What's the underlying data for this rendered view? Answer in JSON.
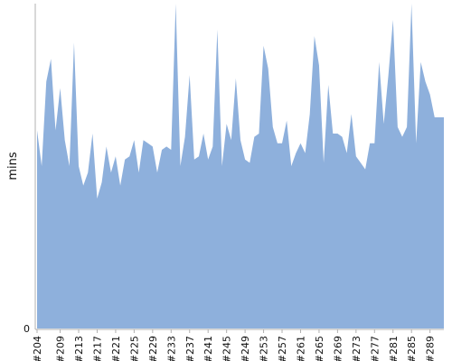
{
  "chart_data": {
    "type": "area",
    "title": "",
    "xlabel": "",
    "ylabel": "mins",
    "ylim": [
      0,
      10
    ],
    "y_ticks": [
      0
    ],
    "x_tick_labels": [
      "#204",
      "#209",
      "#213",
      "#217",
      "#221",
      "#225",
      "#229",
      "#233",
      "#237",
      "#241",
      "#245",
      "#249",
      "#253",
      "#257",
      "#261",
      "#265",
      "#269",
      "#273",
      "#277",
      "#281",
      "#285",
      "#289"
    ],
    "x_tick_builds": [
      204,
      209,
      213,
      217,
      221,
      225,
      229,
      233,
      237,
      241,
      245,
      249,
      253,
      257,
      261,
      265,
      269,
      273,
      277,
      281,
      285,
      289
    ],
    "grid": false,
    "legend": "none",
    "fill_color": "#8eb0dc",
    "axis_color": "#b0b0b0",
    "series": [
      {
        "x": [
          204,
          205,
          206,
          207,
          208,
          209,
          210,
          211,
          212,
          213,
          214,
          215,
          216,
          217,
          218,
          219,
          220,
          221,
          222,
          223,
          224,
          225,
          226,
          227,
          228,
          229,
          230,
          231,
          232,
          233,
          234,
          235,
          236,
          237,
          238,
          239,
          240,
          241,
          242,
          243,
          244,
          245,
          246,
          247,
          248,
          249,
          250,
          251,
          252,
          253,
          254,
          255,
          256,
          257,
          258,
          259,
          260,
          261,
          262,
          263,
          264,
          265,
          266,
          267,
          268,
          269,
          270,
          271,
          272,
          273,
          274,
          275,
          276,
          277,
          278,
          279,
          280,
          281,
          282,
          283,
          284,
          285,
          286,
          287,
          288,
          289,
          290,
          291,
          292
        ],
        "values": [
          6.1,
          5.0,
          7.6,
          8.3,
          6.1,
          7.4,
          5.8,
          5.0,
          8.8,
          5.0,
          4.4,
          4.8,
          6.0,
          4.0,
          4.5,
          5.6,
          4.8,
          5.3,
          4.4,
          5.2,
          5.3,
          5.8,
          4.8,
          5.8,
          5.7,
          5.6,
          4.8,
          5.5,
          5.6,
          5.5,
          10.0,
          5.0,
          5.9,
          7.8,
          5.2,
          5.3,
          6.0,
          5.2,
          5.6,
          9.2,
          5.0,
          6.3,
          5.8,
          7.7,
          5.8,
          5.2,
          5.1,
          5.9,
          6.0,
          8.7,
          8.0,
          6.2,
          5.7,
          5.7,
          6.4,
          5.0,
          5.4,
          5.7,
          5.4,
          6.6,
          9.0,
          8.1,
          5.1,
          7.5,
          6.0,
          6.0,
          5.9,
          5.4,
          6.6,
          5.3,
          5.1,
          4.9,
          5.7,
          5.7,
          8.2,
          6.3,
          7.8,
          9.5,
          6.2,
          5.9,
          6.2,
          10.0,
          5.7,
          8.2,
          7.6,
          7.2,
          6.5,
          6.5,
          6.5
        ]
      }
    ]
  }
}
